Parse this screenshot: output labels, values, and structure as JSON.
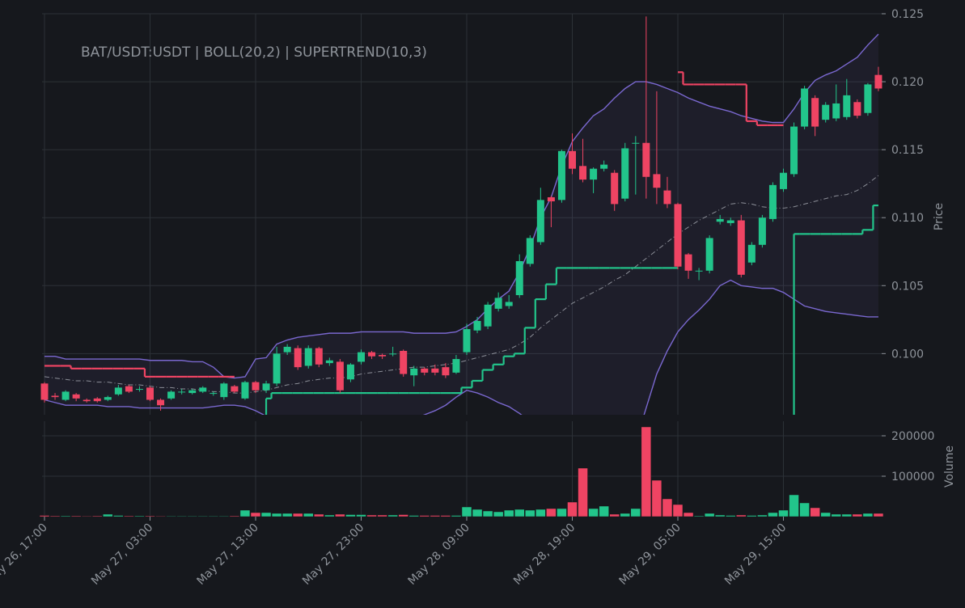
{
  "chart_data": [
    {
      "type": "candlestick",
      "title": "BAT/USDT:USDT | BOLL(20,2) | SUPERTREND(10,3)",
      "ylabel": "Price",
      "grid": true,
      "up_color": "#22c58b",
      "down_color": "#ef4463",
      "ylim": [
        0.0955,
        0.125
      ],
      "yticks": [
        {
          "value": 0.1,
          "label": "0.100"
        },
        0.105,
        {
          "value": 0.11,
          "label": "0.110"
        },
        0.115,
        {
          "value": 0.12,
          "label": "0.120"
        },
        0.125
      ],
      "x": [
        "May 26, 17:00",
        "May 26, 18:00",
        "May 26, 19:00",
        "May 26, 20:00",
        "May 26, 21:00",
        "May 26, 22:00",
        "May 26, 23:00",
        "May 27, 00:00",
        "May 27, 01:00",
        "May 27, 02:00",
        "May 27, 03:00",
        "May 27, 04:00",
        "May 27, 05:00",
        "May 27, 06:00",
        "May 27, 07:00",
        "May 27, 08:00",
        "May 27, 09:00",
        "May 27, 10:00",
        "May 27, 11:00",
        "May 27, 12:00",
        "May 27, 13:00",
        "May 27, 14:00",
        "May 27, 15:00",
        "May 27, 16:00",
        "May 27, 17:00",
        "May 27, 18:00",
        "May 27, 19:00",
        "May 27, 20:00",
        "May 27, 21:00",
        "May 27, 22:00",
        "May 27, 23:00",
        "May 28, 00:00",
        "May 28, 01:00",
        "May 28, 02:00",
        "May 28, 03:00",
        "May 28, 04:00",
        "May 28, 05:00",
        "May 28, 06:00",
        "May 28, 07:00",
        "May 28, 08:00",
        "May 28, 09:00",
        "May 28, 10:00",
        "May 28, 11:00",
        "May 28, 12:00",
        "May 28, 13:00",
        "May 28, 14:00",
        "May 28, 15:00",
        "May 28, 16:00",
        "May 28, 17:00",
        "May 28, 18:00",
        "May 28, 19:00",
        "May 28, 20:00",
        "May 28, 21:00",
        "May 28, 22:00",
        "May 28, 23:00",
        "May 29, 00:00",
        "May 29, 01:00",
        "May 29, 02:00",
        "May 29, 03:00",
        "May 29, 04:00",
        "May 29, 05:00",
        "May 29, 06:00",
        "May 29, 07:00",
        "May 29, 08:00",
        "May 29, 09:00",
        "May 29, 10:00",
        "May 29, 11:00",
        "May 29, 12:00",
        "May 29, 13:00",
        "May 29, 14:00",
        "May 29, 15:00",
        "May 29, 16:00",
        "May 29, 17:00",
        "May 29, 18:00",
        "May 29, 19:00",
        "May 29, 20:00",
        "May 29, 21:00",
        "May 29, 22:00",
        "May 29, 23:00",
        "May 30, 00:00"
      ],
      "xticks": [
        "May 26, 17:00",
        "May 27, 03:00",
        "May 27, 13:00",
        "May 27, 23:00",
        "May 28, 09:00",
        "May 28, 19:00",
        "May 29, 05:00",
        "May 29, 15:00"
      ],
      "open": [
        0.0978,
        0.0969,
        0.0966,
        0.097,
        0.0966,
        0.0967,
        0.0966,
        0.097,
        0.0976,
        0.0974,
        0.0975,
        0.0966,
        0.0967,
        0.0972,
        0.0971,
        0.0972,
        0.0971,
        0.0968,
        0.0976,
        0.0967,
        0.0979,
        0.0973,
        0.0978,
        0.1001,
        0.1004,
        0.0991,
        0.1004,
        0.0993,
        0.0994,
        0.0981,
        0.0994,
        0.1001,
        0.0999,
        0.1,
        0.1002,
        0.0984,
        0.0989,
        0.0989,
        0.099,
        0.0986,
        0.1001,
        0.1017,
        0.102,
        0.1033,
        0.1035,
        0.1043,
        0.1066,
        0.1082,
        0.1115,
        0.1113,
        0.1149,
        0.1138,
        0.1128,
        0.1136,
        0.1133,
        0.1114,
        0.1155,
        0.1155,
        0.1132,
        0.112,
        0.111,
        0.1073,
        0.1061,
        0.1061,
        0.1097,
        0.1096,
        0.1098,
        0.1067,
        0.108,
        0.1099,
        0.1121,
        0.1132,
        0.1167,
        0.1188,
        0.1172,
        0.1173,
        0.1174,
        0.1185,
        0.1177,
        0.1205
      ],
      "high": [
        0.0979,
        0.0971,
        0.0973,
        0.0971,
        0.0967,
        0.0968,
        0.0969,
        0.0977,
        0.0977,
        0.0976,
        0.0976,
        0.0967,
        0.0973,
        0.0974,
        0.0974,
        0.0976,
        0.0972,
        0.0979,
        0.0977,
        0.098,
        0.098,
        0.098,
        0.1005,
        0.1007,
        0.1006,
        0.1006,
        0.1005,
        0.0997,
        0.0996,
        0.0993,
        0.1003,
        0.1002,
        0.1,
        0.1005,
        0.1003,
        0.0991,
        0.099,
        0.0992,
        0.0993,
        0.0999,
        0.1022,
        0.1027,
        0.1038,
        0.1045,
        0.1043,
        0.1073,
        0.1087,
        0.1122,
        0.1116,
        0.115,
        0.1162,
        0.1158,
        0.1137,
        0.1142,
        0.1135,
        0.1155,
        0.116,
        0.1248,
        0.1193,
        0.113,
        0.1111,
        0.1074,
        0.1063,
        0.1087,
        0.1102,
        0.11,
        0.1102,
        0.1082,
        0.1102,
        0.1126,
        0.1136,
        0.117,
        0.1197,
        0.119,
        0.1185,
        0.1198,
        0.1202,
        0.1187,
        0.1199,
        0.1211
      ],
      "low": [
        0.0964,
        0.0966,
        0.0965,
        0.0965,
        0.0964,
        0.0964,
        0.0965,
        0.0969,
        0.0971,
        0.0972,
        0.0965,
        0.0958,
        0.0966,
        0.097,
        0.097,
        0.0971,
        0.0969,
        0.0966,
        0.0971,
        0.0966,
        0.0971,
        0.0971,
        0.0976,
        0.0999,
        0.0988,
        0.0989,
        0.099,
        0.0991,
        0.0971,
        0.0979,
        0.0992,
        0.0996,
        0.0996,
        0.0998,
        0.0983,
        0.0976,
        0.0984,
        0.0984,
        0.0982,
        0.0985,
        0.0999,
        0.1015,
        0.1018,
        0.1031,
        0.1033,
        0.1041,
        0.1064,
        0.108,
        0.1093,
        0.1111,
        0.1132,
        0.1126,
        0.1118,
        0.1134,
        0.1105,
        0.1112,
        0.1117,
        0.1114,
        0.111,
        0.1107,
        0.1062,
        0.1055,
        0.1054,
        0.1059,
        0.1095,
        0.1094,
        0.1056,
        0.1065,
        0.1078,
        0.1097,
        0.1119,
        0.113,
        0.1165,
        0.116,
        0.117,
        0.1171,
        0.1172,
        0.1173,
        0.1175,
        0.1193
      ],
      "close": [
        0.0966,
        0.0968,
        0.0972,
        0.0967,
        0.0965,
        0.0965,
        0.0968,
        0.0975,
        0.0972,
        0.0974,
        0.0966,
        0.0962,
        0.0972,
        0.0972,
        0.0973,
        0.0975,
        0.0971,
        0.0978,
        0.0972,
        0.0979,
        0.0973,
        0.0978,
        0.1,
        0.1005,
        0.099,
        0.1004,
        0.0992,
        0.0995,
        0.0973,
        0.0992,
        0.1001,
        0.0998,
        0.0998,
        0.1,
        0.0985,
        0.0989,
        0.0986,
        0.0986,
        0.0984,
        0.0996,
        0.1018,
        0.1024,
        0.1036,
        0.1041,
        0.1038,
        0.1068,
        0.1085,
        0.1113,
        0.1112,
        0.1149,
        0.1136,
        0.1128,
        0.1136,
        0.1139,
        0.111,
        0.1151,
        0.1155,
        0.113,
        0.1122,
        0.111,
        0.1064,
        0.1061,
        0.1061,
        0.1085,
        0.1099,
        0.1098,
        0.1058,
        0.108,
        0.11,
        0.1124,
        0.1133,
        0.1167,
        0.1195,
        0.1167,
        0.1183,
        0.1184,
        0.119,
        0.1175,
        0.1198,
        0.1195
      ],
      "bands": {
        "color": "#7a68d0",
        "mid_color": "#8c8f98",
        "upper": [
          0.0998,
          0.0998,
          0.0996,
          0.0996,
          0.0996,
          0.0996,
          0.0996,
          0.0996,
          0.0996,
          0.0996,
          0.0995,
          0.0995,
          0.0995,
          0.0995,
          0.0994,
          0.0994,
          0.099,
          0.0983,
          0.0982,
          0.0983,
          0.0996,
          0.0997,
          0.1007,
          0.101,
          0.1012,
          0.1013,
          0.1014,
          0.1015,
          0.1015,
          0.1015,
          0.1016,
          0.1016,
          0.1016,
          0.1016,
          0.1016,
          0.1015,
          0.1015,
          0.1015,
          0.1015,
          0.1016,
          0.102,
          0.1025,
          0.1033,
          0.104,
          0.1046,
          0.106,
          0.1078,
          0.11,
          0.1115,
          0.1138,
          0.1156,
          0.1166,
          0.1175,
          0.118,
          0.1188,
          0.1195,
          0.12,
          0.12,
          0.1198,
          0.1195,
          0.1192,
          0.1188,
          0.1185,
          0.1182,
          0.118,
          0.1178,
          0.1175,
          0.1173,
          0.1171,
          0.117,
          0.117,
          0.118,
          0.1192,
          0.1201,
          0.1205,
          0.1208,
          0.1213,
          0.1218,
          0.1227,
          0.1235
        ],
        "middle": [
          0.0983,
          0.0982,
          0.0981,
          0.098,
          0.098,
          0.0979,
          0.0979,
          0.0978,
          0.0977,
          0.0977,
          0.0976,
          0.0975,
          0.0975,
          0.0974,
          0.0974,
          0.0973,
          0.0972,
          0.0972,
          0.0971,
          0.0971,
          0.0972,
          0.0973,
          0.0975,
          0.0977,
          0.0978,
          0.098,
          0.0981,
          0.0982,
          0.0982,
          0.0983,
          0.0985,
          0.0986,
          0.0987,
          0.0988,
          0.0989,
          0.099,
          0.099,
          0.0991,
          0.0992,
          0.0993,
          0.0995,
          0.0997,
          0.0999,
          0.1001,
          0.1003,
          0.1007,
          0.1012,
          0.1019,
          0.1025,
          0.1031,
          0.1037,
          0.1041,
          0.1045,
          0.1049,
          0.1054,
          0.1058,
          0.1064,
          0.107,
          0.1076,
          0.1082,
          0.1088,
          0.1093,
          0.1098,
          0.1102,
          0.1106,
          0.111,
          0.1111,
          0.111,
          0.1108,
          0.1107,
          0.1107,
          0.1108,
          0.111,
          0.1112,
          0.1114,
          0.1116,
          0.1117,
          0.112,
          0.1125,
          0.1131
        ],
        "lower": [
          0.0966,
          0.0964,
          0.0962,
          0.0962,
          0.0962,
          0.0962,
          0.0961,
          0.0961,
          0.0961,
          0.096,
          0.096,
          0.096,
          0.096,
          0.096,
          0.096,
          0.096,
          0.0961,
          0.0962,
          0.0962,
          0.0961,
          0.0958,
          0.0954,
          0.0951,
          0.0949,
          0.0948,
          0.0948,
          0.0948,
          0.0948,
          0.0948,
          0.0948,
          0.0948,
          0.0948,
          0.0948,
          0.0948,
          0.095,
          0.0952,
          0.0955,
          0.0958,
          0.0962,
          0.0968,
          0.0973,
          0.0971,
          0.0968,
          0.0964,
          0.0961,
          0.0956,
          0.095,
          0.094,
          0.093,
          0.0915,
          0.0905,
          0.09,
          0.0895,
          0.0895,
          0.09,
          0.0912,
          0.0935,
          0.096,
          0.0985,
          0.1002,
          0.1016,
          0.1025,
          0.1032,
          0.104,
          0.105,
          0.1054,
          0.105,
          0.1049,
          0.1048,
          0.1048,
          0.1045,
          0.104,
          0.1035,
          0.1033,
          0.1031,
          0.103,
          0.1029,
          0.1028,
          0.1027,
          0.1027
        ]
      },
      "supertrend": {
        "up_color": "#22c58b",
        "down_color": "#ef4463",
        "up": [
          null,
          null,
          null,
          null,
          null,
          null,
          null,
          null,
          null,
          null,
          null,
          null,
          null,
          null,
          null,
          null,
          null,
          null,
          null,
          null,
          null,
          0.0967,
          0.0971,
          0.0971,
          0.0971,
          0.0971,
          0.0971,
          0.0971,
          0.0971,
          0.0971,
          0.0971,
          0.0971,
          0.0971,
          0.0971,
          0.0971,
          0.0971,
          0.0971,
          0.0971,
          0.0971,
          0.0971,
          0.0975,
          0.098,
          0.0988,
          0.0992,
          0.0998,
          0.1,
          0.1019,
          0.104,
          0.1051,
          0.1063,
          0.1063,
          0.1063,
          0.1063,
          0.1063,
          0.1063,
          0.1063,
          0.1063,
          0.1063,
          0.1063,
          0.1063,
          0.1063,
          null,
          null,
          null,
          null,
          null,
          null,
          null,
          null,
          null,
          null,
          0.1088,
          0.1088,
          0.1088,
          0.1088,
          0.1088,
          0.1088,
          0.1088,
          0.1091,
          0.1109
        ],
        "down": [
          0.0991,
          0.0991,
          0.0991,
          0.0989,
          0.0989,
          0.0989,
          0.0989,
          0.0989,
          0.0989,
          0.0989,
          0.0983,
          0.0983,
          0.0983,
          0.0983,
          0.0983,
          0.0983,
          0.0983,
          0.0983,
          0.0983,
          null,
          null,
          null,
          null,
          null,
          null,
          null,
          null,
          null,
          null,
          null,
          null,
          null,
          null,
          null,
          null,
          null,
          null,
          null,
          null,
          null,
          null,
          null,
          null,
          null,
          null,
          null,
          null,
          null,
          null,
          null,
          null,
          null,
          null,
          null,
          null,
          null,
          null,
          null,
          null,
          null,
          0.1207,
          0.1198,
          0.1198,
          0.1198,
          0.1198,
          0.1198,
          0.1198,
          0.1171,
          0.1168,
          0.1168,
          0.1168,
          null,
          null,
          null,
          null,
          null,
          null,
          null,
          null,
          null
        ]
      }
    },
    {
      "type": "bar",
      "ylabel": "Volume",
      "grid": true,
      "ylim": [
        0,
        236000
      ],
      "yticks": [
        100000,
        200000
      ],
      "values": [
        3000,
        2000,
        2000,
        2000,
        1500,
        2000,
        6000,
        3000,
        2000,
        2000,
        2000,
        1500,
        1500,
        1500,
        1500,
        1500,
        1500,
        1500,
        2000,
        16000,
        10000,
        10000,
        8000,
        8000,
        8000,
        8000,
        6000,
        4000,
        6000,
        5000,
        5000,
        4000,
        4000,
        4000,
        5000,
        3000,
        3000,
        3000,
        3000,
        3000,
        24000,
        18000,
        14000,
        12000,
        16000,
        18000,
        16000,
        18000,
        20000,
        20000,
        36000,
        120000,
        20000,
        26000,
        6000,
        8000,
        20000,
        222000,
        90000,
        44000,
        30000,
        10000,
        2000,
        8000,
        4000,
        3000,
        4000,
        3000,
        4000,
        10000,
        16000,
        54000,
        34000,
        22000,
        10000,
        6000,
        6000,
        6000,
        8000,
        8000
      ]
    }
  ]
}
